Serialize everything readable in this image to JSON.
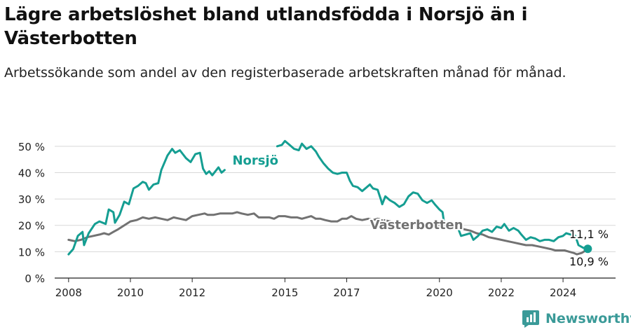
{
  "title": "Lägre arbetslöshet bland utlandsfödda i Norsjö än i Västerbotten",
  "subtitle": "Arbetssökande som andel av den registerbaserade arbetskraften månad för månad.",
  "brand": "Newsworthy",
  "colors": {
    "norsjo": "#159e92",
    "vasterbotten": "#727272",
    "grid": "#d8d8d8",
    "brand": "#3a9a98"
  },
  "chart_data": {
    "type": "line",
    "ylim": [
      0,
      55
    ],
    "y_ticks": [
      0,
      10,
      20,
      30,
      40,
      50
    ],
    "y_tick_labels": [
      "0 %",
      "10 %",
      "20 %",
      "30 %",
      "40 %",
      "50 %"
    ],
    "x_ticks": [
      2008,
      2010,
      2012,
      2015,
      2017,
      2020,
      2022,
      2024
    ],
    "x_tick_labels": [
      "2008",
      "2010",
      "2012",
      "2015",
      "2017",
      "2020",
      "2022",
      "2024"
    ],
    "series": [
      {
        "name": "Norsjö",
        "end_label": "11,1 %",
        "points": [
          [
            2008.0,
            9
          ],
          [
            2008.15,
            11
          ],
          [
            2008.3,
            16
          ],
          [
            2008.45,
            17.5
          ],
          [
            2008.5,
            12.5
          ],
          [
            2008.65,
            17
          ],
          [
            2008.85,
            20.5
          ],
          [
            2009.0,
            21.5
          ],
          [
            2009.2,
            20.5
          ],
          [
            2009.3,
            26
          ],
          [
            2009.45,
            25
          ],
          [
            2009.5,
            21
          ],
          [
            2009.65,
            24
          ],
          [
            2009.8,
            29
          ],
          [
            2009.95,
            28
          ],
          [
            2010.1,
            34
          ],
          [
            2010.25,
            35
          ],
          [
            2010.4,
            36.5
          ],
          [
            2010.5,
            36
          ],
          [
            2010.6,
            33.5
          ],
          [
            2010.75,
            35.5
          ],
          [
            2010.9,
            36
          ],
          [
            2011.0,
            41
          ],
          [
            2011.2,
            46.5
          ],
          [
            2011.35,
            49
          ],
          [
            2011.45,
            47.5
          ],
          [
            2011.6,
            48.5
          ],
          [
            2011.8,
            45.5
          ],
          [
            2011.95,
            44
          ],
          [
            2012.1,
            47
          ],
          [
            2012.25,
            47.5
          ],
          [
            2012.35,
            41.5
          ],
          [
            2012.45,
            39.5
          ],
          [
            2012.55,
            40.5
          ],
          [
            2012.65,
            39
          ],
          [
            2012.75,
            40.5
          ],
          [
            2012.85,
            42
          ],
          [
            2012.95,
            40
          ],
          [
            2013.05,
            41
          ],
          [
            null,
            null
          ],
          [
            2014.75,
            50
          ],
          [
            2014.9,
            50.5
          ],
          [
            2015.0,
            52
          ],
          [
            2015.15,
            50.5
          ],
          [
            2015.3,
            49
          ],
          [
            2015.45,
            48.5
          ],
          [
            2015.55,
            51
          ],
          [
            2015.7,
            49
          ],
          [
            2015.85,
            50
          ],
          [
            2016.0,
            48
          ],
          [
            2016.1,
            46
          ],
          [
            2016.25,
            43.5
          ],
          [
            2016.4,
            41.5
          ],
          [
            2016.55,
            40
          ],
          [
            2016.7,
            39.5
          ],
          [
            2016.85,
            40
          ],
          [
            2017.0,
            40
          ],
          [
            2017.1,
            37
          ],
          [
            2017.2,
            35
          ],
          [
            2017.35,
            34.5
          ],
          [
            2017.5,
            33
          ],
          [
            2017.65,
            34.5
          ],
          [
            2017.75,
            35.5
          ],
          [
            2017.85,
            34
          ],
          [
            2018.0,
            33.5
          ],
          [
            2018.1,
            30
          ],
          [
            2018.15,
            28
          ],
          [
            2018.25,
            31
          ],
          [
            2018.4,
            29.5
          ],
          [
            2018.55,
            28.5
          ],
          [
            2018.7,
            27
          ],
          [
            2018.85,
            28
          ],
          [
            2019.0,
            31
          ],
          [
            2019.15,
            32.5
          ],
          [
            2019.3,
            32
          ],
          [
            2019.45,
            29.5
          ],
          [
            2019.6,
            28.5
          ],
          [
            2019.75,
            29.5
          ],
          [
            2019.85,
            28
          ],
          [
            2020.0,
            26
          ],
          [
            2020.1,
            25
          ],
          [
            2020.15,
            21
          ],
          [
            2020.3,
            20
          ],
          [
            2020.45,
            20.5
          ],
          [
            2020.6,
            19
          ],
          [
            2020.7,
            16
          ],
          [
            2020.85,
            16.5
          ],
          [
            2021.0,
            17
          ],
          [
            2021.1,
            14.5
          ],
          [
            2021.25,
            16
          ],
          [
            2021.4,
            18
          ],
          [
            2021.55,
            18.5
          ],
          [
            2021.7,
            17.5
          ],
          [
            2021.85,
            19.5
          ],
          [
            2022.0,
            19
          ],
          [
            2022.1,
            20.5
          ],
          [
            2022.25,
            18
          ],
          [
            2022.4,
            19
          ],
          [
            2022.55,
            18
          ],
          [
            2022.65,
            16.5
          ],
          [
            2022.8,
            14.5
          ],
          [
            2022.95,
            15.5
          ],
          [
            2023.1,
            15
          ],
          [
            2023.25,
            14
          ],
          [
            2023.4,
            14.5
          ],
          [
            2023.55,
            14.5
          ],
          [
            2023.7,
            14
          ],
          [
            2023.85,
            15.5
          ],
          [
            2024.0,
            16
          ],
          [
            2024.1,
            17
          ],
          [
            2024.25,
            16.5
          ],
          [
            2024.4,
            16
          ],
          [
            2024.5,
            12.5
          ],
          [
            2024.65,
            11.5
          ],
          [
            2024.8,
            11.1
          ]
        ]
      },
      {
        "name": "Västerbotten",
        "end_label": "10,9 %",
        "points": [
          [
            2008.0,
            14.5
          ],
          [
            2008.2,
            14
          ],
          [
            2008.4,
            14.5
          ],
          [
            2008.6,
            15.5
          ],
          [
            2008.8,
            16
          ],
          [
            2009.0,
            16.5
          ],
          [
            2009.15,
            17
          ],
          [
            2009.3,
            16.5
          ],
          [
            2009.45,
            17.5
          ],
          [
            2009.6,
            18.5
          ],
          [
            2009.8,
            20
          ],
          [
            2010.0,
            21.5
          ],
          [
            2010.2,
            22
          ],
          [
            2010.4,
            23
          ],
          [
            2010.6,
            22.5
          ],
          [
            2010.8,
            23
          ],
          [
            2011.0,
            22.5
          ],
          [
            2011.2,
            22
          ],
          [
            2011.4,
            23
          ],
          [
            2011.6,
            22.5
          ],
          [
            2011.8,
            22
          ],
          [
            2012.0,
            23.5
          ],
          [
            2012.2,
            24
          ],
          [
            2012.4,
            24.5
          ],
          [
            2012.5,
            24
          ],
          [
            2012.7,
            24
          ],
          [
            2012.9,
            24.5
          ],
          [
            2013.1,
            24.5
          ],
          [
            2013.3,
            24.5
          ],
          [
            2013.45,
            25
          ],
          [
            2013.6,
            24.5
          ],
          [
            2013.8,
            24
          ],
          [
            2014.0,
            24.5
          ],
          [
            2014.15,
            23
          ],
          [
            2014.3,
            23
          ],
          [
            2014.5,
            23
          ],
          [
            2014.65,
            22.5
          ],
          [
            2014.8,
            23.5
          ],
          [
            2015.0,
            23.5
          ],
          [
            2015.2,
            23
          ],
          [
            2015.4,
            23
          ],
          [
            2015.55,
            22.5
          ],
          [
            2015.7,
            23
          ],
          [
            2015.85,
            23.5
          ],
          [
            2016.0,
            22.5
          ],
          [
            2016.15,
            22.5
          ],
          [
            2016.3,
            22
          ],
          [
            2016.5,
            21.5
          ],
          [
            2016.7,
            21.5
          ],
          [
            2016.85,
            22.5
          ],
          [
            2017.0,
            22.5
          ],
          [
            2017.15,
            23.5
          ],
          [
            2017.3,
            22.5
          ],
          [
            2017.5,
            22
          ],
          [
            2017.7,
            22.5
          ],
          [
            2017.85,
            22
          ],
          [
            2018.0,
            22.5
          ],
          [
            2018.2,
            22
          ],
          [
            2018.4,
            21.5
          ],
          [
            2018.6,
            21
          ],
          [
            2018.8,
            21
          ],
          [
            2019.0,
            20.5
          ],
          [
            2019.2,
            20.5
          ],
          [
            2019.4,
            20.5
          ],
          [
            2019.6,
            20
          ],
          [
            2019.8,
            20
          ],
          [
            2020.0,
            20
          ],
          [
            2020.2,
            20
          ],
          [
            2020.4,
            20
          ],
          [
            2020.6,
            19.5
          ],
          [
            2020.8,
            18.5
          ],
          [
            2021.0,
            18
          ],
          [
            2021.2,
            17
          ],
          [
            2021.4,
            16.5
          ],
          [
            2021.6,
            15.5
          ],
          [
            2021.8,
            15
          ],
          [
            2022.0,
            14.5
          ],
          [
            2022.2,
            14
          ],
          [
            2022.4,
            13.5
          ],
          [
            2022.6,
            13
          ],
          [
            2022.8,
            12.5
          ],
          [
            2023.0,
            12.5
          ],
          [
            2023.2,
            12
          ],
          [
            2023.4,
            11.5
          ],
          [
            2023.6,
            11
          ],
          [
            2023.75,
            10.5
          ],
          [
            2023.9,
            10.5
          ],
          [
            2024.05,
            10.5
          ],
          [
            2024.2,
            10
          ],
          [
            2024.35,
            9.5
          ],
          [
            2024.45,
            9
          ],
          [
            2024.6,
            9.5
          ],
          [
            2024.8,
            10.9
          ]
        ]
      }
    ]
  }
}
